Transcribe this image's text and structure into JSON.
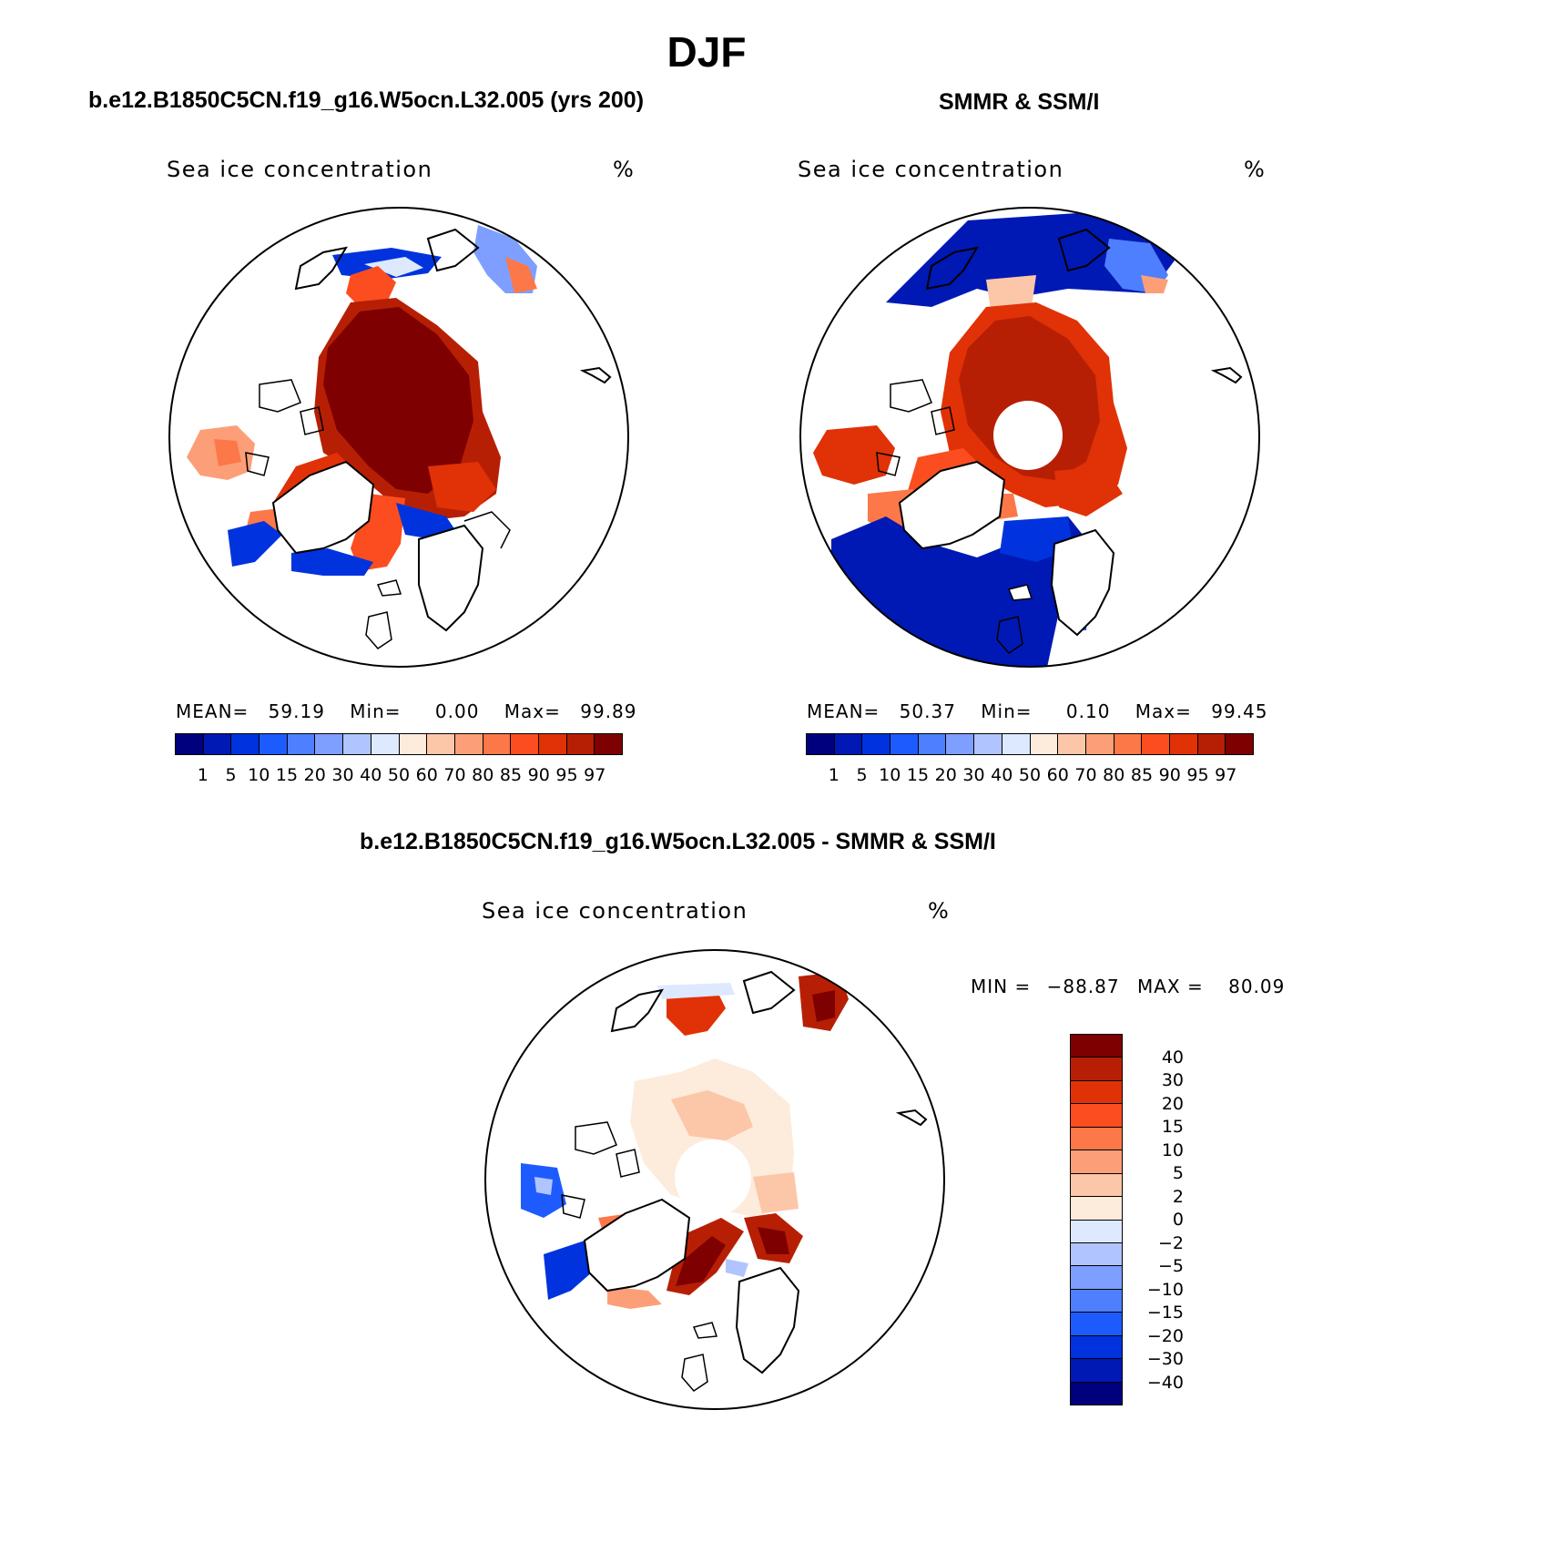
{
  "title": "DJF",
  "colors": {
    "diverging": [
      "#00007f",
      "#0019b4",
      "#0033dd",
      "#1e5bff",
      "#4d7fff",
      "#7e9fff",
      "#b0c4ff",
      "#dde9ff",
      "#fdebdc",
      "#fcc6a8",
      "#fc9f78",
      "#fc7848",
      "#fb4d1f",
      "#e13106",
      "#b71f05",
      "#7f0000"
    ],
    "land_outline": "#000000"
  },
  "panels": [
    {
      "id": "model",
      "title": "b.e12.B1850C5CN.f19_g16.W5ocn.L32.005 (yrs 200)",
      "left_label": "Sea ice concentration",
      "right_label": "%",
      "stats": {
        "mean_label": "MEAN=",
        "mean": "59.19",
        "min_label": "Min=",
        "min": "0.00",
        "max_label": "Max=",
        "max": "99.89"
      },
      "polar_hole": false
    },
    {
      "id": "obs",
      "title": "SMMR & SSM/I",
      "left_label": "Sea ice concentration",
      "right_label": "%",
      "stats": {
        "mean_label": "MEAN=",
        "mean": "50.37",
        "min_label": "Min=",
        "min": "0.10",
        "max_label": "Max=",
        "max": "99.45"
      },
      "polar_hole": true
    },
    {
      "id": "diff",
      "title": "b.e12.B1850C5CN.f19_g16.W5ocn.L32.005 - SMMR & SSM/I",
      "left_label": "Sea ice concentration",
      "right_label": "%",
      "stats": {
        "min_label": "MIN =",
        "min": "−88.87",
        "max_label": "MAX =",
        "max": "80.09"
      },
      "polar_hole": true
    }
  ],
  "chart_data": [
    {
      "type": "heatmap",
      "projection": "north-polar-stereographic",
      "title": "b.e12.B1850C5CN.f19_g16.W5ocn.L32.005 (yrs 200)",
      "variable": "Sea ice concentration",
      "units": "%",
      "colorbar_ticks": [
        "1",
        "5",
        "10",
        "15",
        "20",
        "30",
        "40",
        "50",
        "60",
        "70",
        "80",
        "85",
        "90",
        "95",
        "97"
      ],
      "mean": 59.19,
      "min": 0.0,
      "max": 99.89
    },
    {
      "type": "heatmap",
      "projection": "north-polar-stereographic",
      "title": "SMMR & SSM/I",
      "variable": "Sea ice concentration",
      "units": "%",
      "colorbar_ticks": [
        "1",
        "5",
        "10",
        "15",
        "20",
        "30",
        "40",
        "50",
        "60",
        "70",
        "80",
        "85",
        "90",
        "95",
        "97"
      ],
      "mean": 50.37,
      "min": 0.1,
      "max": 99.45
    },
    {
      "type": "heatmap",
      "projection": "north-polar-stereographic",
      "title": "b.e12.B1850C5CN.f19_g16.W5ocn.L32.005 - SMMR & SSM/I",
      "variable": "Sea ice concentration",
      "units": "%",
      "colorbar_ticks": [
        "40",
        "30",
        "20",
        "15",
        "10",
        "5",
        "2",
        "0",
        "−2",
        "−5",
        "−10",
        "−15",
        "−20",
        "−30",
        "−40"
      ],
      "min": -88.87,
      "max": 80.09
    }
  ]
}
